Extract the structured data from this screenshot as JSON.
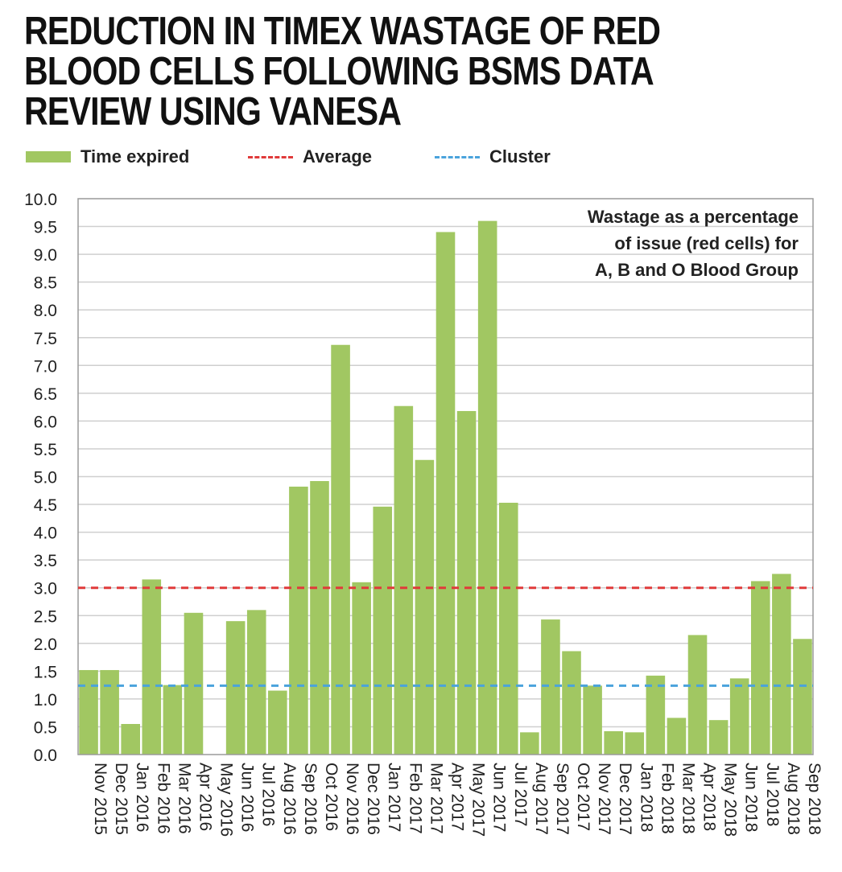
{
  "title": "REDUCTION IN TIMEX WASTAGE OF RED BLOOD CELLS FOLLOWING BSMS DATA REVIEW USING VANESA",
  "legend": {
    "time_expired": "Time expired",
    "average": "Average",
    "cluster": "Cluster"
  },
  "colors": {
    "bar": "#a1c762",
    "average": "#e03a3a",
    "cluster": "#4aa3dc",
    "grid": "#cfcfcf"
  },
  "chart_data": {
    "type": "bar",
    "annotation": "Wastage as a percentage of issue (red cells) for A, B and O Blood Group",
    "annotation_lines": [
      "Wastage as a percentage",
      "of issue (red cells) for",
      "A, B and O Blood Group"
    ],
    "ylim": [
      0,
      10
    ],
    "y_ticks": [
      "0.0",
      "0.5",
      "1.0",
      "1.5",
      "2.0",
      "2.5",
      "3.0",
      "3.5",
      "4.0",
      "4.5",
      "5.0",
      "5.5",
      "6.0",
      "6.5",
      "7.0",
      "7.5",
      "8.0",
      "8.5",
      "9.0",
      "9.5",
      "10.0"
    ],
    "grid": true,
    "legend_position": "top",
    "categories": [
      "Nov 2015",
      "Dec 2015",
      "Jan 2016",
      "Feb 2016",
      "Mar 2016",
      "Apr 2016",
      "May 2016",
      "Jun 2016",
      "Jul 2016",
      "Aug 2016",
      "Sep 2016",
      "Oct 2016",
      "Nov 2016",
      "Dec 2016",
      "Jan 2017",
      "Feb 2017",
      "Mar 2017",
      "Apr 2017",
      "May 2017",
      "Jun 2017",
      "Jul 2017",
      "Aug 2017",
      "Sep 2017",
      "Oct 2017",
      "Nov 2017",
      "Dec 2017",
      "Jan 2018",
      "Feb 2018",
      "Mar 2018",
      "Apr 2018",
      "May 2018",
      "Jun 2018",
      "Jul 2018",
      "Aug 2018",
      "Sep 2018"
    ],
    "series": [
      {
        "name": "Time expired",
        "values": [
          1.52,
          1.52,
          0.55,
          3.15,
          1.25,
          2.55,
          0,
          2.4,
          2.6,
          1.15,
          4.82,
          4.92,
          7.37,
          3.1,
          4.46,
          6.27,
          5.3,
          9.4,
          6.18,
          9.6,
          4.53,
          0.4,
          2.43,
          1.86,
          1.24,
          0.42,
          0.4,
          1.42,
          0.66,
          2.15,
          0.62,
          1.37,
          3.12,
          3.25,
          2.08
        ]
      }
    ],
    "average": 3.0,
    "cluster": 1.24
  }
}
